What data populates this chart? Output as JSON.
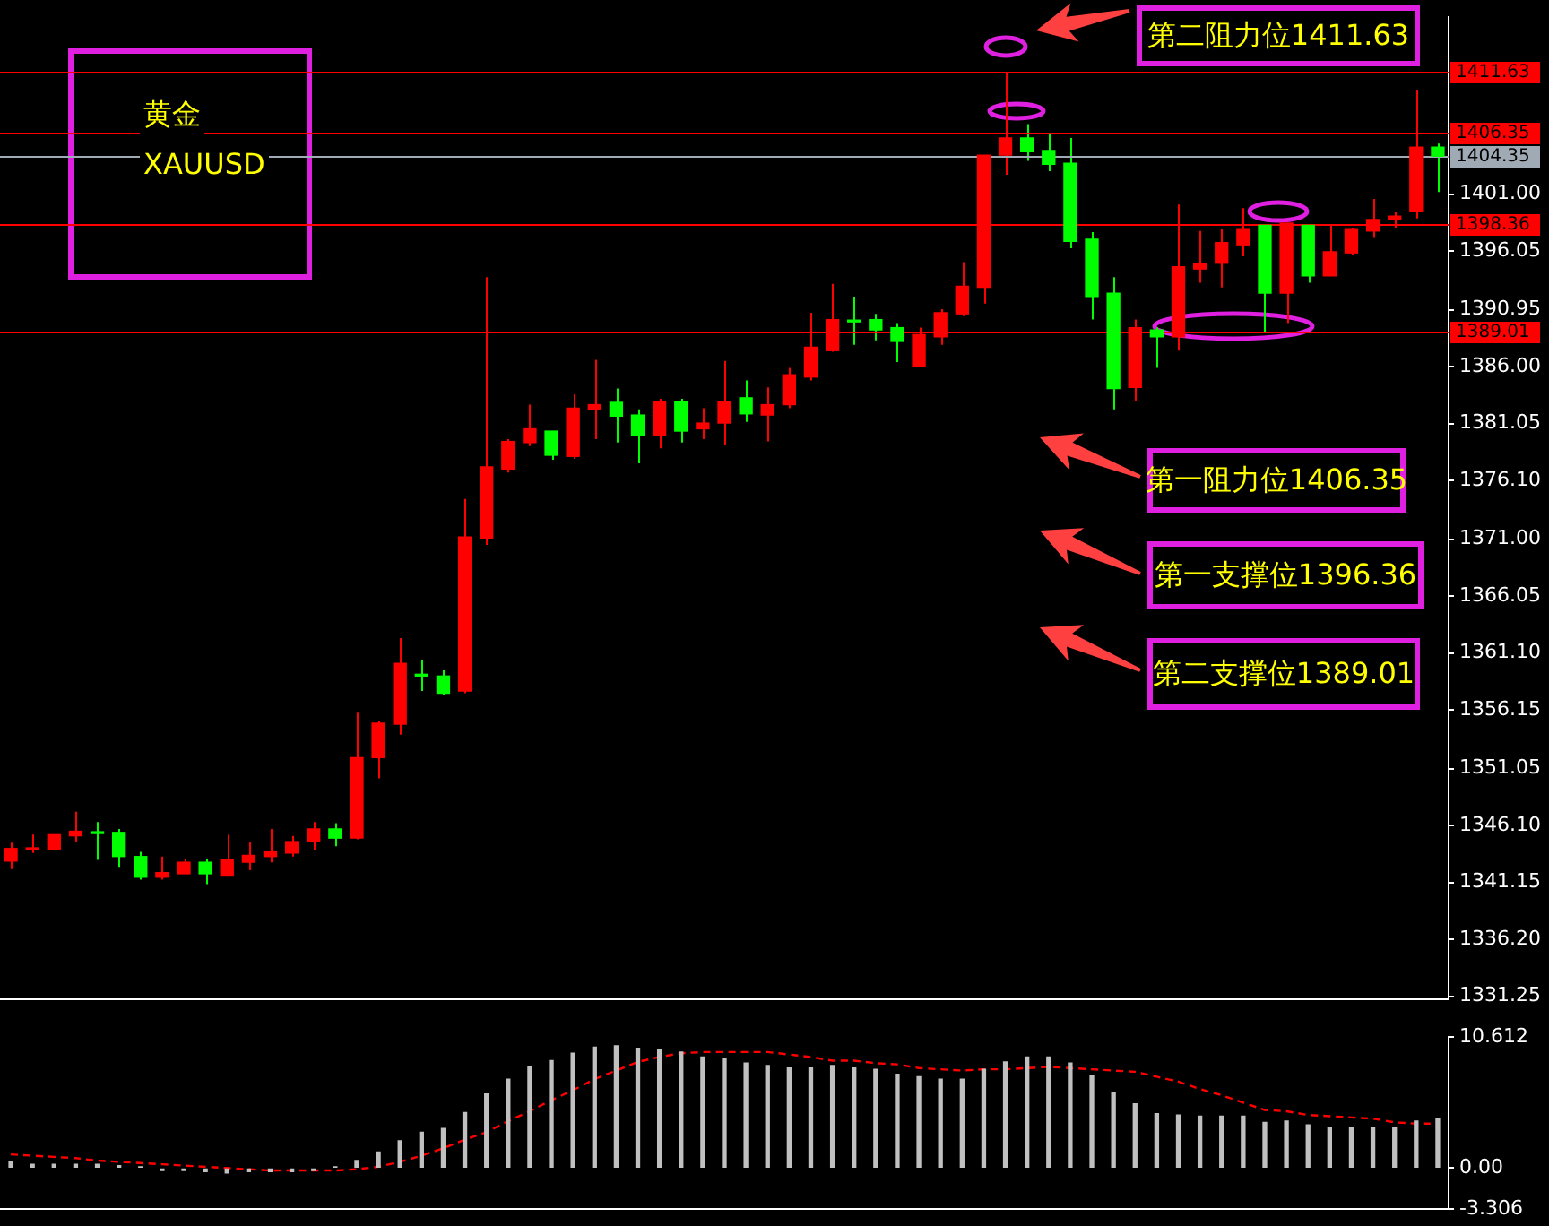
{
  "chart_data": [
    {
      "type": "candlestick",
      "tick_labels": "y",
      "grid": false,
      "categories": [
        null,
        null,
        null,
        null,
        null,
        null,
        null,
        null,
        null,
        null,
        null,
        null,
        null,
        null,
        null,
        null,
        null,
        null,
        null,
        null,
        null,
        null,
        null,
        null,
        null,
        null,
        null,
        null,
        null,
        null,
        null,
        null,
        null,
        null,
        null,
        null,
        null,
        null,
        null,
        null,
        null,
        null,
        null,
        null,
        null,
        null,
        null,
        null,
        null,
        null,
        null,
        null,
        null,
        null,
        null,
        null,
        null,
        null,
        null,
        null,
        null,
        null,
        null,
        null,
        null,
        null,
        null
      ],
      "ohlc": [
        [
          1343.0,
          1344.6,
          1342.3,
          1344.1
        ],
        [
          1344.0,
          1345.3,
          1343.7,
          1344.1
        ],
        [
          1344.0,
          1345.3,
          1344.0,
          1345.3
        ],
        [
          1345.2,
          1347.3,
          1344.7,
          1345.6
        ],
        [
          1345.5,
          1346.4,
          1343.1,
          1345.4
        ],
        [
          1345.5,
          1345.8,
          1342.5,
          1343.4
        ],
        [
          1343.4,
          1343.8,
          1341.4,
          1341.6
        ],
        [
          1341.6,
          1343.4,
          1341.4,
          1342.0
        ],
        [
          1341.9,
          1343.2,
          1341.9,
          1342.9
        ],
        [
          1342.9,
          1343.2,
          1341.0,
          1341.9
        ],
        [
          1341.7,
          1345.3,
          1341.7,
          1343.1
        ],
        [
          1342.9,
          1344.7,
          1342.2,
          1343.5
        ],
        [
          1343.4,
          1345.8,
          1342.9,
          1343.8
        ],
        [
          1343.7,
          1345.2,
          1343.4,
          1344.7
        ],
        [
          1344.7,
          1346.4,
          1344.0,
          1345.8
        ],
        [
          1345.8,
          1346.3,
          1344.3,
          1345.0
        ],
        [
          1345.0,
          1355.9,
          1344.9,
          1352.0
        ],
        [
          1352.0,
          1355.2,
          1350.2,
          1355.0
        ],
        [
          1354.9,
          1362.4,
          1354.0,
          1360.2
        ],
        [
          1359.2,
          1360.5,
          1357.8,
          1359.1
        ],
        [
          1359.1,
          1359.6,
          1357.4,
          1357.6
        ],
        [
          1357.8,
          1374.5,
          1357.6,
          1371.2
        ],
        [
          1371.1,
          1393.8,
          1370.5,
          1377.3
        ],
        [
          1377.1,
          1379.7,
          1376.8,
          1379.5
        ],
        [
          1379.4,
          1382.7,
          1379.1,
          1380.6
        ],
        [
          1380.4,
          1380.4,
          1377.9,
          1378.3
        ],
        [
          1378.2,
          1383.6,
          1378.0,
          1382.4
        ],
        [
          1382.3,
          1386.6,
          1379.7,
          1382.7
        ],
        [
          1382.9,
          1384.1,
          1379.4,
          1381.7
        ],
        [
          1381.8,
          1382.3,
          1377.6,
          1380.0
        ],
        [
          1380.0,
          1383.2,
          1378.9,
          1383.0
        ],
        [
          1383.0,
          1383.2,
          1379.4,
          1380.4
        ],
        [
          1380.6,
          1382.4,
          1379.7,
          1381.1
        ],
        [
          1381.1,
          1386.5,
          1379.2,
          1383.0
        ],
        [
          1383.3,
          1384.8,
          1381.2,
          1381.9
        ],
        [
          1381.8,
          1384.2,
          1379.5,
          1382.7
        ],
        [
          1382.7,
          1385.9,
          1382.4,
          1385.3
        ],
        [
          1385.1,
          1390.7,
          1384.8,
          1387.7
        ],
        [
          1387.4,
          1393.2,
          1387.3,
          1390.1
        ],
        [
          1390.0,
          1392.1,
          1387.9,
          1389.9
        ],
        [
          1390.1,
          1390.6,
          1388.3,
          1389.2
        ],
        [
          1389.4,
          1389.8,
          1386.4,
          1388.2
        ],
        [
          1386.0,
          1389.4,
          1386.0,
          1388.8
        ],
        [
          1388.6,
          1391.0,
          1387.9,
          1390.7
        ],
        [
          1390.6,
          1395.1,
          1390.4,
          1393.0
        ],
        [
          1392.9,
          1404.4,
          1391.5,
          1404.4
        ],
        [
          1404.4,
          1411.6,
          1402.7,
          1405.9
        ],
        [
          1405.9,
          1407.1,
          1403.9,
          1404.7
        ],
        [
          1404.8,
          1406.3,
          1403.0,
          1403.6
        ],
        [
          1403.7,
          1405.9,
          1396.3,
          1396.9
        ],
        [
          1397.1,
          1397.7,
          1390.1,
          1392.1
        ],
        [
          1392.4,
          1393.8,
          1382.3,
          1384.1
        ],
        [
          1384.2,
          1390.1,
          1383.0,
          1389.4
        ],
        [
          1389.2,
          1389.4,
          1385.9,
          1388.6
        ],
        [
          1388.6,
          1400.1,
          1387.4,
          1394.7
        ],
        [
          1394.5,
          1397.8,
          1393.3,
          1395.0
        ],
        [
          1395.0,
          1398.0,
          1392.9,
          1396.8
        ],
        [
          1396.6,
          1399.8,
          1395.6,
          1398.0
        ],
        [
          1398.3,
          1398.3,
          1388.9,
          1392.4
        ],
        [
          1392.4,
          1398.5,
          1389.8,
          1398.5
        ],
        [
          1398.3,
          1398.3,
          1393.3,
          1393.9
        ],
        [
          1393.9,
          1398.3,
          1393.9,
          1396.0
        ],
        [
          1395.9,
          1398.1,
          1395.7,
          1398.0
        ],
        [
          1397.8,
          1400.6,
          1397.2,
          1398.8
        ],
        [
          1398.8,
          1399.5,
          1398.1,
          1399.1
        ],
        [
          1399.5,
          1410.1,
          1398.9,
          1405.1
        ],
        [
          1405.1,
          1405.4,
          1401.2,
          1404.3
        ]
      ],
      "colors": [
        "#ff0000",
        "#ff0000",
        "#ff0000",
        "#ff0000",
        "#00ff00",
        "#00ff00",
        "#00ff00",
        "#ff0000",
        "#ff0000",
        "#00ff00",
        "#ff0000",
        "#ff0000",
        "#ff0000",
        "#ff0000",
        "#ff0000",
        "#00ff00",
        "#ff0000",
        "#ff0000",
        "#ff0000",
        "#00ff00",
        "#00ff00",
        "#ff0000",
        "#ff0000",
        "#ff0000",
        "#ff0000",
        "#00ff00",
        "#ff0000",
        "#ff0000",
        "#00ff00",
        "#00ff00",
        "#ff0000",
        "#00ff00",
        "#ff0000",
        "#ff0000",
        "#00ff00",
        "#ff0000",
        "#ff0000",
        "#ff0000",
        "#ff0000",
        "#00ff00",
        "#00ff00",
        "#00ff00",
        "#ff0000",
        "#ff0000",
        "#ff0000",
        "#ff0000",
        "#ff0000",
        "#00ff00",
        "#00ff00",
        "#00ff00",
        "#00ff00",
        "#00ff00",
        "#ff0000",
        "#00ff00",
        "#ff0000",
        "#ff0000",
        "#ff0000",
        "#ff0000",
        "#00ff00",
        "#ff0000",
        "#00ff00",
        "#ff0000",
        "#ff0000",
        "#ff0000",
        "#ff0000",
        "#ff0000",
        "#00ff00"
      ],
      "ylim": [
        1331.0,
        1416.4
      ],
      "yticks": [
        {
          "value": 1401.0,
          "label": "1401.00"
        },
        {
          "value": 1396.05,
          "label": "1396.05"
        },
        {
          "value": 1390.95,
          "label": "1390.95"
        },
        {
          "value": 1386.0,
          "label": "1386.00"
        },
        {
          "value": 1381.05,
          "label": "1381.05"
        },
        {
          "value": 1376.1,
          "label": "1376.10"
        },
        {
          "value": 1371.0,
          "label": "1371.00"
        },
        {
          "value": 1366.05,
          "label": "1366.05"
        },
        {
          "value": 1361.1,
          "label": "1361.10"
        },
        {
          "value": 1356.15,
          "label": "1356.15"
        },
        {
          "value": 1351.05,
          "label": "1351.05"
        },
        {
          "value": 1346.1,
          "label": "1346.10"
        },
        {
          "value": 1341.15,
          "label": "1341.15"
        },
        {
          "value": 1336.2,
          "label": "1336.20"
        },
        {
          "value": 1331.25,
          "label": "1331.25"
        }
      ],
      "ref_lines": [
        {
          "axis": "y",
          "value": 1411.63,
          "label": "1411.63",
          "color": "#ff0000"
        },
        {
          "axis": "y",
          "value": 1406.35,
          "label": "1406.35",
          "color": "#ff0000"
        },
        {
          "axis": "y",
          "value": 1404.35,
          "label": "1404.35",
          "color": "#a0aab4"
        },
        {
          "axis": "y",
          "value": 1398.36,
          "label": "1398.36",
          "color": "#ff0000"
        },
        {
          "axis": "y",
          "value": 1389.01,
          "label": "1389.01",
          "color": "#ff0000"
        }
      ],
      "annotations": [
        "黄金",
        "XAUUSD",
        "第二阻力位1411.63",
        "第一阻力位1406.35",
        "第一支撑位1396.36",
        "第二支撑位1389.01"
      ]
    },
    {
      "type": "bar",
      "tick_labels": "y",
      "grid": false,
      "categories": [
        null,
        null,
        null,
        null,
        null,
        null,
        null,
        null,
        null,
        null,
        null,
        null,
        null,
        null,
        null,
        null,
        null,
        null,
        null,
        null,
        null,
        null,
        null,
        null,
        null,
        null,
        null,
        null,
        null,
        null,
        null,
        null,
        null,
        null,
        null,
        null,
        null,
        null,
        null,
        null,
        null,
        null,
        null,
        null,
        null,
        null,
        null,
        null,
        null,
        null,
        null,
        null,
        null,
        null,
        null,
        null,
        null,
        null,
        null,
        null,
        null,
        null,
        null,
        null,
        null,
        null,
        null
      ],
      "ylim": [
        -3.306,
        10.612
      ],
      "yticks": [
        10.612,
        {
          "value": 0,
          "label": "0.00"
        },
        -3.306
      ],
      "series": [
        {
          "type": "bar",
          "color": "#c0c0c0",
          "values": [
            0.5,
            0.3,
            0.3,
            0.3,
            0.3,
            0.2,
            0.1,
            -0.2,
            -0.2,
            -0.3,
            -0.4,
            -0.3,
            -0.3,
            -0.3,
            -0.2,
            0.1,
            0.6,
            1.3,
            2.2,
            2.9,
            3.2,
            4.5,
            6.0,
            7.2,
            8.2,
            8.7,
            9.3,
            9.8,
            9.9,
            9.7,
            9.6,
            9.4,
            9.0,
            8.9,
            8.5,
            8.3,
            8.1,
            8.1,
            8.3,
            8.1,
            8.0,
            7.6,
            7.4,
            7.2,
            7.2,
            8.0,
            8.6,
            9.0,
            9.0,
            8.5,
            7.5,
            6.1,
            5.2,
            4.4,
            4.3,
            4.2,
            4.2,
            4.2,
            3.7,
            3.8,
            3.5,
            3.3,
            3.3,
            3.3,
            3.3,
            3.8,
            4.0
          ]
        },
        {
          "type": "line",
          "color": "#ff0000",
          "line_style": "dashed",
          "marker": "none",
          "values": [
            1.1,
            1.0,
            0.9,
            0.8,
            0.6,
            0.5,
            0.4,
            0.3,
            0.2,
            0.1,
            0.0,
            -0.1,
            -0.2,
            -0.2,
            -0.2,
            -0.2,
            -0.1,
            0.1,
            0.5,
            1.0,
            1.6,
            2.3,
            2.9,
            3.8,
            4.6,
            5.5,
            6.3,
            7.2,
            7.9,
            8.6,
            9.0,
            9.3,
            9.4,
            9.4,
            9.4,
            9.4,
            9.2,
            9.0,
            8.7,
            8.7,
            8.5,
            8.4,
            8.1,
            8.0,
            7.9,
            8.0,
            8.0,
            8.1,
            8.2,
            8.1,
            8.0,
            7.9,
            7.8,
            7.4,
            7.0,
            6.4,
            5.9,
            5.3,
            4.7,
            4.6,
            4.3,
            4.2,
            4.1,
            4.0,
            3.7,
            3.6,
            3.6
          ]
        }
      ]
    }
  ]
}
